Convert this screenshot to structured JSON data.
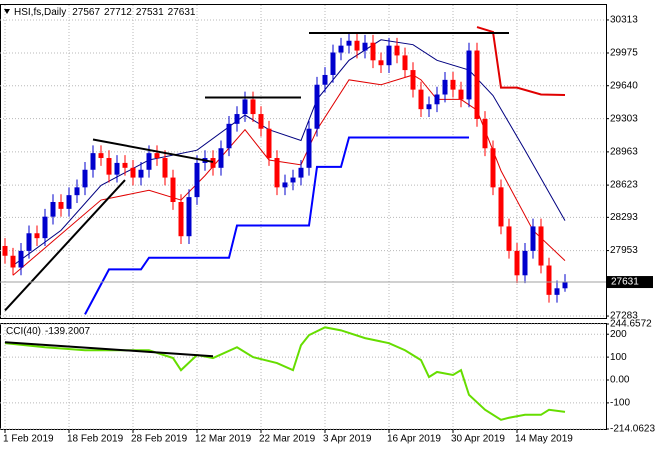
{
  "chart_data": [
    {
      "type": "candlestick",
      "title": "HSI,fs,Daily",
      "categories": [
        "1 Feb 2019",
        null,
        null,
        null,
        null,
        null,
        null,
        null,
        "18 Feb 2019",
        null,
        null,
        null,
        null,
        null,
        null,
        null,
        "28 Feb 2019",
        null,
        null,
        null,
        null,
        null,
        null,
        null,
        "12 Mar 2019",
        null,
        null,
        null,
        null,
        null,
        null,
        null,
        "22 Mar 2019",
        null,
        null,
        null,
        null,
        null,
        null,
        null,
        "3 Apr 2019",
        null,
        null,
        null,
        null,
        null,
        null,
        null,
        "16 Apr 2019",
        null,
        null,
        null,
        null,
        null,
        null,
        null,
        "30 Apr 2019",
        null,
        null,
        null,
        null,
        null,
        null,
        null,
        "14 May 2019",
        null,
        null,
        null,
        null,
        null,
        null
      ],
      "open": [
        28000,
        27900,
        27780,
        27950,
        28130,
        28080,
        28300,
        28450,
        28380,
        28520,
        28600,
        28780,
        28950,
        28900,
        28730,
        28850,
        28800,
        28700,
        28780,
        28950,
        28900,
        28700,
        28450,
        28100,
        28500,
        28850,
        28900,
        28800,
        29000,
        29250,
        29350,
        29500,
        29350,
        29200,
        28900,
        28600,
        28650,
        28700,
        28800,
        29200,
        29650,
        29750,
        29980,
        30050,
        30100,
        30000,
        30080,
        29900,
        29850,
        30050,
        29950,
        29800,
        29600,
        29400,
        29450,
        29550,
        29700,
        29600,
        29500,
        30000,
        29300,
        29000,
        28600,
        28200,
        27950,
        27700,
        27950,
        28200,
        27800,
        27500,
        27567
      ],
      "high": [
        28080,
        27980,
        28030,
        28210,
        28210,
        28380,
        28530,
        28530,
        28600,
        28680,
        28860,
        29030,
        29030,
        28980,
        28930,
        28930,
        28880,
        28860,
        29030,
        29030,
        28980,
        28780,
        28530,
        28580,
        28930,
        28980,
        28980,
        29080,
        29330,
        29430,
        29580,
        29580,
        29430,
        29280,
        28980,
        28730,
        28780,
        28880,
        29280,
        29730,
        29830,
        30060,
        30130,
        30180,
        30180,
        30160,
        30160,
        29980,
        30130,
        30130,
        30030,
        29880,
        29680,
        29530,
        29630,
        29780,
        29780,
        29680,
        30080,
        30080,
        29380,
        29080,
        28680,
        28280,
        28030,
        28030,
        28280,
        28280,
        27880,
        27647,
        27712
      ],
      "low": [
        27820,
        27700,
        27700,
        27870,
        28000,
        28000,
        28220,
        28300,
        28300,
        28440,
        28520,
        28700,
        28820,
        28650,
        28650,
        28720,
        28620,
        28620,
        28700,
        28820,
        28620,
        28370,
        28020,
        28020,
        28420,
        28770,
        28720,
        28720,
        28920,
        29170,
        29270,
        29270,
        29120,
        28820,
        28520,
        28520,
        28570,
        28620,
        28720,
        29120,
        29570,
        29670,
        29900,
        29970,
        29920,
        29920,
        29820,
        29770,
        29770,
        29870,
        29720,
        29520,
        29320,
        29320,
        29370,
        29470,
        29520,
        29420,
        29420,
        29220,
        28920,
        28520,
        28120,
        27870,
        27620,
        27620,
        27870,
        27720,
        27420,
        27420,
        27531
      ],
      "close": [
        27900,
        27780,
        27950,
        28130,
        28080,
        28300,
        28450,
        28380,
        28520,
        28600,
        28780,
        28950,
        28900,
        28730,
        28850,
        28800,
        28700,
        28780,
        28950,
        28900,
        28700,
        28450,
        28100,
        28500,
        28850,
        28900,
        28800,
        29000,
        29250,
        29350,
        29500,
        29350,
        29200,
        28900,
        28600,
        28650,
        28700,
        28800,
        29200,
        29650,
        29750,
        29980,
        30050,
        30100,
        30000,
        30080,
        29900,
        29850,
        30050,
        29950,
        29800,
        29600,
        29400,
        29450,
        29550,
        29700,
        29600,
        29500,
        30000,
        29300,
        29000,
        28600,
        28200,
        27950,
        27700,
        27950,
        28200,
        27800,
        27500,
        27567,
        27631
      ],
      "up_color": "#0000cd",
      "down_color": "#ff0000",
      "ylim": [
        27263,
        30466
      ],
      "yticks": [
        27283,
        27953,
        28293,
        28623,
        28963,
        29303,
        29640,
        29975,
        30313
      ],
      "grid": true,
      "lines": [
        {
          "color": "#e00000",
          "x": [
            1,
            12,
            18,
            22,
            25,
            30,
            33,
            37,
            39,
            43,
            47,
            51,
            52,
            54,
            57,
            59,
            62,
            66,
            70
          ],
          "values": [
            27700,
            28470,
            28570,
            28470,
            28720,
            29190,
            28880,
            28830,
            29190,
            29700,
            29650,
            29750,
            29700,
            29500,
            29500,
            29390,
            28770,
            28160,
            27850
          ]
        },
        {
          "color": "#000080",
          "x": [
            1,
            7,
            12,
            18,
            24,
            30,
            33,
            37,
            39,
            43,
            47,
            51,
            54,
            58,
            61,
            65,
            70
          ],
          "values": [
            27800,
            28160,
            28620,
            28880,
            28980,
            29340,
            29190,
            29080,
            29500,
            29900,
            30110,
            30060,
            29900,
            29800,
            29540,
            28980,
            28260
          ]
        }
      ],
      "bands": [
        {
          "color": "#0000ff",
          "x": [
            10,
            13,
            17,
            18,
            28,
            29,
            38,
            39,
            42,
            43,
            58
          ],
          "values": [
            27300,
            27760,
            27760,
            27880,
            27880,
            28210,
            28210,
            28810,
            28810,
            29110,
            29110
          ]
        },
        {
          "color": "#e00000",
          "x": [
            59,
            61,
            62,
            64,
            67,
            70
          ],
          "values": [
            30240,
            30190,
            29620,
            29620,
            29550,
            29545
          ]
        }
      ],
      "trendlines": [
        {
          "color": "#000000",
          "x": [
            0,
            15
          ],
          "values": [
            27340,
            28675
          ]
        },
        {
          "color": "#000000",
          "x": [
            11,
            26
          ],
          "values": [
            29090,
            28860
          ]
        },
        {
          "color": "#000000",
          "x": [
            25,
            37
          ],
          "values": [
            29520,
            29520
          ]
        },
        {
          "color": "#000000",
          "x": [
            38,
            63
          ],
          "values": [
            30180,
            30180
          ]
        }
      ]
    },
    {
      "type": "line",
      "title": "CCI(40)",
      "x": [
        0,
        5,
        10,
        14,
        18,
        21,
        22,
        24,
        26,
        29,
        31,
        34,
        36,
        37,
        38,
        40,
        42,
        45,
        48,
        50,
        52,
        53,
        54,
        56,
        57,
        58,
        60,
        62,
        63,
        65,
        67,
        68,
        70
      ],
      "values": [
        161,
        143,
        130,
        130,
        130,
        96,
        43,
        109,
        96,
        143,
        100,
        74,
        43,
        152,
        196,
        230,
        217,
        183,
        161,
        130,
        87,
        13,
        35,
        22,
        43,
        -65,
        -130,
        -174,
        -165,
        -152,
        -152,
        -130,
        -139.2007
      ],
      "color": "#66dd00",
      "ylim": [
        -214.0623,
        244.6572
      ],
      "yticks": [
        -214.0623,
        -100,
        {
          "value": 0,
          "label": "0.00"
        },
        100,
        200,
        244.6572
      ],
      "grid": true,
      "trendlines": [
        {
          "color": "#000000",
          "x": [
            0,
            26
          ],
          "values": [
            165,
            104
          ]
        }
      ]
    }
  ]
}
